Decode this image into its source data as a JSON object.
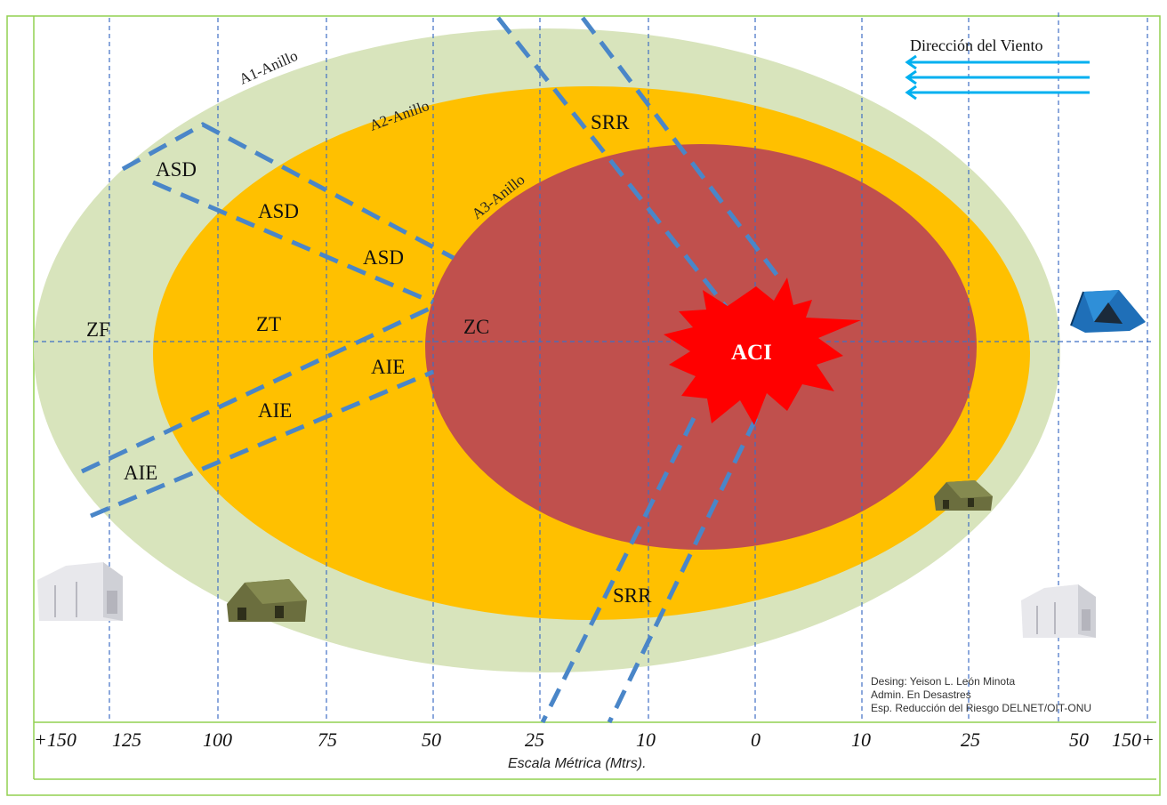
{
  "colors": {
    "ring_a1": "#d8e4bc",
    "ring_a2": "#ffc000",
    "ring_a3": "#c0504d",
    "aci_burst": "#ff0000",
    "routes": "#4a86c8",
    "grid": "#3f6fc4",
    "frame": "#92d050",
    "wind_arrows": "#00b0f0"
  },
  "rings": {
    "a1": "A1-Anillo",
    "a2": "A2-Anillo",
    "a3": "A3-Anillo"
  },
  "zones": {
    "zf": "ZF",
    "zt": "ZT",
    "zc": "ZC",
    "aci": "ACI"
  },
  "asd_labels": [
    "ASD",
    "ASD",
    "ASD"
  ],
  "aie_labels": [
    "AIE",
    "AIE",
    "AIE"
  ],
  "srr_labels": [
    "SRR",
    "SRR"
  ],
  "wind": {
    "label": "Dirección del Viento",
    "arrow_icon": "arrow-left-icon"
  },
  "scale": {
    "ticks": [
      "+150",
      "125",
      "100",
      "75",
      "50",
      "25",
      "10",
      "0",
      "10",
      "25",
      "50",
      "150+"
    ],
    "caption": "Escala Métrica (Mtrs)."
  },
  "credit": {
    "line1": "Desing: Yeison L. León Minota",
    "line2": "Admin. En Desastres",
    "line3": "Esp. Reducción del Riesgo DELNET/OIT-ONU"
  },
  "icons": {
    "tent_blue": "dome-tent-icon",
    "tent_green": "military-tent-icon",
    "tent_white": "white-tent-icon"
  }
}
